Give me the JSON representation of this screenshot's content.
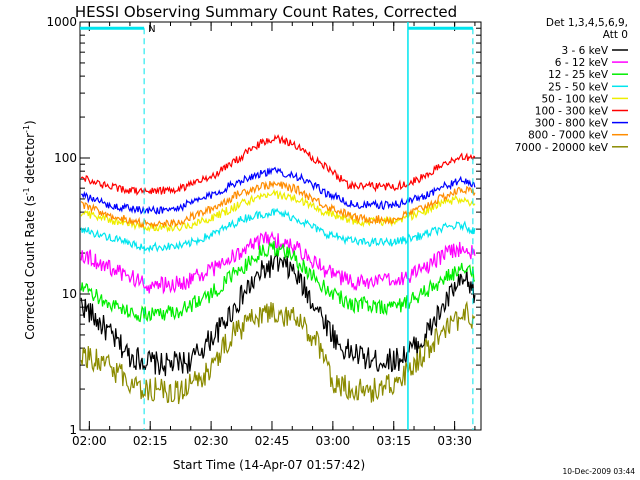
{
  "chart_data": {
    "type": "line",
    "title": "HESSI Observing Summary Count Rates, Corrected",
    "xlabel": "Start Time (14-Apr-07 01:57:42)",
    "ylabel_main": "Corrected Count Rate (s",
    "ylabel_sup1": "-1",
    "ylabel_mid": " detector",
    "ylabel_sup2": "-1",
    "ylabel_end": ")",
    "y_scale": "log",
    "ylim": [
      1,
      1000
    ],
    "y_ticks": [
      {
        "value": 1,
        "label": "1"
      },
      {
        "value": 10,
        "label": "10"
      },
      {
        "value": 100,
        "label": "100"
      },
      {
        "value": 1000,
        "label": "1000"
      }
    ],
    "xlim_minutes": [
      117.7,
      216.5
    ],
    "x_ticks": [
      {
        "value": 120,
        "label": "02:00"
      },
      {
        "value": 135,
        "label": "02:15"
      },
      {
        "value": 150,
        "label": "02:30"
      },
      {
        "value": 165,
        "label": "02:45"
      },
      {
        "value": 180,
        "label": "03:00"
      },
      {
        "value": 195,
        "label": "03:15"
      },
      {
        "value": 210,
        "label": "03:30"
      }
    ],
    "legend_header": [
      "Det 1,3,4,5,6,9,",
      "Att 0"
    ],
    "legend_position": "right",
    "event_markers": [
      {
        "label": "N",
        "segments": [
          [
            117.7,
            133.5
          ],
          [
            198.5,
            214.5
          ]
        ],
        "color": "#00e5ee"
      }
    ],
    "series": [
      {
        "name": "3 - 6 keV",
        "color": "#000000",
        "values": [
          [
            118,
            8.5
          ],
          [
            124,
            5.5
          ],
          [
            130,
            3.5
          ],
          [
            138,
            3.0
          ],
          [
            145,
            3.2
          ],
          [
            152,
            5.5
          ],
          [
            158,
            10
          ],
          [
            163,
            15
          ],
          [
            166,
            17
          ],
          [
            170,
            15
          ],
          [
            176,
            8
          ],
          [
            182,
            4
          ],
          [
            190,
            3.2
          ],
          [
            196,
            3.3
          ],
          [
            202,
            4.5
          ],
          [
            206,
            7
          ],
          [
            210,
            11
          ],
          [
            213,
            12.5
          ],
          [
            215,
            10
          ]
        ]
      },
      {
        "name": "6 - 12 keV",
        "color": "#ff00ff",
        "values": [
          [
            118,
            20
          ],
          [
            126,
            15
          ],
          [
            135,
            11.5
          ],
          [
            143,
            12
          ],
          [
            150,
            15
          ],
          [
            158,
            21
          ],
          [
            163,
            25
          ],
          [
            166,
            25
          ],
          [
            171,
            22
          ],
          [
            178,
            15
          ],
          [
            185,
            12
          ],
          [
            195,
            12.5
          ],
          [
            202,
            15
          ],
          [
            208,
            20
          ],
          [
            212,
            22
          ],
          [
            215,
            20
          ]
        ]
      },
      {
        "name": "12 - 25 keV",
        "color": "#00ee00",
        "values": [
          [
            118,
            11
          ],
          [
            125,
            8.5
          ],
          [
            132,
            7
          ],
          [
            142,
            7.5
          ],
          [
            150,
            10
          ],
          [
            157,
            15
          ],
          [
            163,
            21
          ],
          [
            166,
            22
          ],
          [
            171,
            18
          ],
          [
            177,
            12
          ],
          [
            184,
            8.5
          ],
          [
            195,
            8
          ],
          [
            201,
            9.5
          ],
          [
            206,
            12
          ],
          [
            211,
            15
          ],
          [
            215,
            14
          ]
        ]
      },
      {
        "name": "25 - 50 keV",
        "color": "#00e5ee",
        "values": [
          [
            118,
            30
          ],
          [
            125,
            26
          ],
          [
            133,
            22
          ],
          [
            143,
            22.5
          ],
          [
            151,
            28
          ],
          [
            158,
            36
          ],
          [
            163,
            39
          ],
          [
            166,
            40
          ],
          [
            171,
            36
          ],
          [
            178,
            28
          ],
          [
            186,
            24
          ],
          [
            195,
            24
          ],
          [
            202,
            27
          ],
          [
            208,
            31
          ],
          [
            212,
            32
          ],
          [
            215,
            29
          ]
        ]
      },
      {
        "name": "50 - 100 keV",
        "color": "#eeee00",
        "values": [
          [
            118,
            40
          ],
          [
            125,
            35
          ],
          [
            134,
            31
          ],
          [
            143,
            31
          ],
          [
            151,
            37
          ],
          [
            158,
            47
          ],
          [
            163,
            53
          ],
          [
            166,
            54
          ],
          [
            171,
            50
          ],
          [
            178,
            40
          ],
          [
            186,
            34
          ],
          [
            195,
            34
          ],
          [
            202,
            40
          ],
          [
            208,
            48
          ],
          [
            212,
            50
          ],
          [
            215,
            46
          ]
        ]
      },
      {
        "name": "100 - 300 keV",
        "color": "#ff0000",
        "values": [
          [
            118,
            73
          ],
          [
            124,
            62
          ],
          [
            132,
            57
          ],
          [
            141,
            58
          ],
          [
            150,
            72
          ],
          [
            157,
            100
          ],
          [
            162,
            128
          ],
          [
            166,
            140
          ],
          [
            170,
            128
          ],
          [
            177,
            92
          ],
          [
            184,
            63
          ],
          [
            195,
            61
          ],
          [
            202,
            72
          ],
          [
            208,
            93
          ],
          [
            212,
            103
          ],
          [
            215,
            97
          ]
        ]
      },
      {
        "name": "300 - 800 keV",
        "color": "#0000ff",
        "values": [
          [
            118,
            53
          ],
          [
            125,
            45
          ],
          [
            133,
            41
          ],
          [
            141,
            42
          ],
          [
            150,
            53
          ],
          [
            157,
            68
          ],
          [
            162,
            77
          ],
          [
            166,
            80
          ],
          [
            171,
            74
          ],
          [
            178,
            56
          ],
          [
            185,
            45
          ],
          [
            195,
            45
          ],
          [
            202,
            52
          ],
          [
            208,
            63
          ],
          [
            212,
            68
          ],
          [
            215,
            64
          ]
        ]
      },
      {
        "name": "800 - 7000 keV",
        "color": "#ff8c00",
        "values": [
          [
            118,
            45
          ],
          [
            125,
            38
          ],
          [
            133,
            33
          ],
          [
            141,
            33
          ],
          [
            150,
            42
          ],
          [
            157,
            55
          ],
          [
            162,
            62
          ],
          [
            166,
            64
          ],
          [
            171,
            59
          ],
          [
            178,
            45
          ],
          [
            186,
            36
          ],
          [
            195,
            35
          ],
          [
            202,
            43
          ],
          [
            208,
            53
          ],
          [
            212,
            59
          ],
          [
            215,
            56
          ]
        ]
      },
      {
        "name": "7000 - 20000 keV",
        "color": "#8b8b00",
        "values": [
          [
            118,
            3.6
          ],
          [
            124,
            3.1
          ],
          [
            131,
            2.1
          ],
          [
            142,
            1.9
          ],
          [
            150,
            2.8
          ],
          [
            155,
            5
          ],
          [
            160,
            6.5
          ],
          [
            166,
            7.5
          ],
          [
            171,
            6.5
          ],
          [
            176,
            4.5
          ],
          [
            180,
            2.2
          ],
          [
            188,
            1.9
          ],
          [
            196,
            2.2
          ],
          [
            202,
            3.5
          ],
          [
            208,
            5.5
          ],
          [
            213,
            7
          ],
          [
            215,
            6
          ]
        ]
      }
    ]
  },
  "timestamp": "10-Dec-2009 03:44"
}
